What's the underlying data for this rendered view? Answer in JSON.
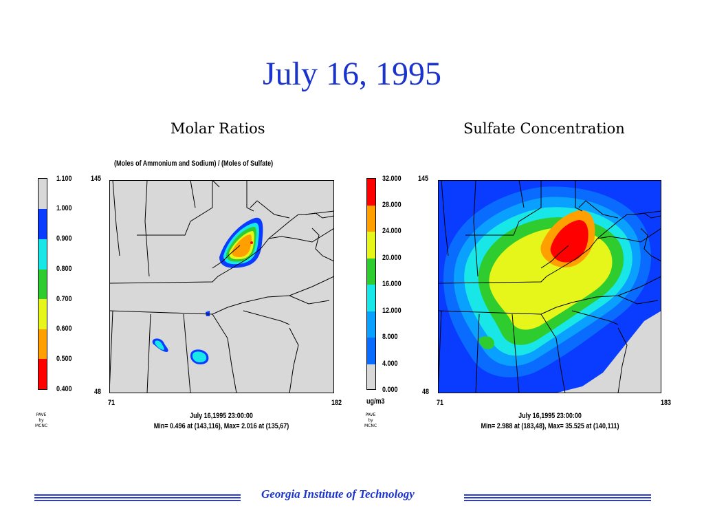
{
  "slide": {
    "title": "July 16, 1995",
    "footer": "Georgia Institute of Technology",
    "colors": {
      "title": "#1a33cc",
      "footer_rule": "#2b3bd0"
    }
  },
  "panels": [
    {
      "title": "Molar Ratios",
      "subtitle": "(Moles of Ammonium and Sodium) / (Moles of Sulfate)",
      "y_top": "145",
      "y_bottom": "48",
      "x_left": "71",
      "x_right": "182",
      "legend_labels": [
        "1.100",
        "1.000",
        "0.900",
        "0.800",
        "0.700",
        "0.600",
        "0.500",
        "0.400"
      ],
      "legend_colors": [
        "#d8d8d8",
        "#0a3cff",
        "#19e6e6",
        "#2ecc2e",
        "#e6f51a",
        "#ff9f00",
        "#ff0000"
      ],
      "units": "",
      "credit": [
        "PAVE",
        "by",
        "MCNC"
      ],
      "timestamp": "July 16,1995 23:00:00",
      "minmax": "Min=   0.496 at (143,116), Max=   2.016 at (135,67)"
    },
    {
      "title": "Sulfate Concentration",
      "subtitle": "",
      "y_top": "145",
      "y_bottom": "48",
      "x_left": "71",
      "x_right": "183",
      "legend_labels": [
        "32.000",
        "28.000",
        "24.000",
        "20.000",
        "16.000",
        "12.000",
        "8.000",
        "4.000",
        "0.000"
      ],
      "legend_colors": [
        "#ff0000",
        "#ff9f00",
        "#e6f51a",
        "#2ecc2e",
        "#19e6e6",
        "#0aa0ff",
        "#0a6cff",
        "#0a3cff",
        "#d8d8d8"
      ],
      "units": "ug/m3",
      "credit": [
        "PAVE",
        "by",
        "MCNC"
      ],
      "timestamp": "July 16,1995 23:00:00",
      "minmax": "Min=   2.988 at (183,48), Max=   35.525 at (140,111)"
    }
  ]
}
